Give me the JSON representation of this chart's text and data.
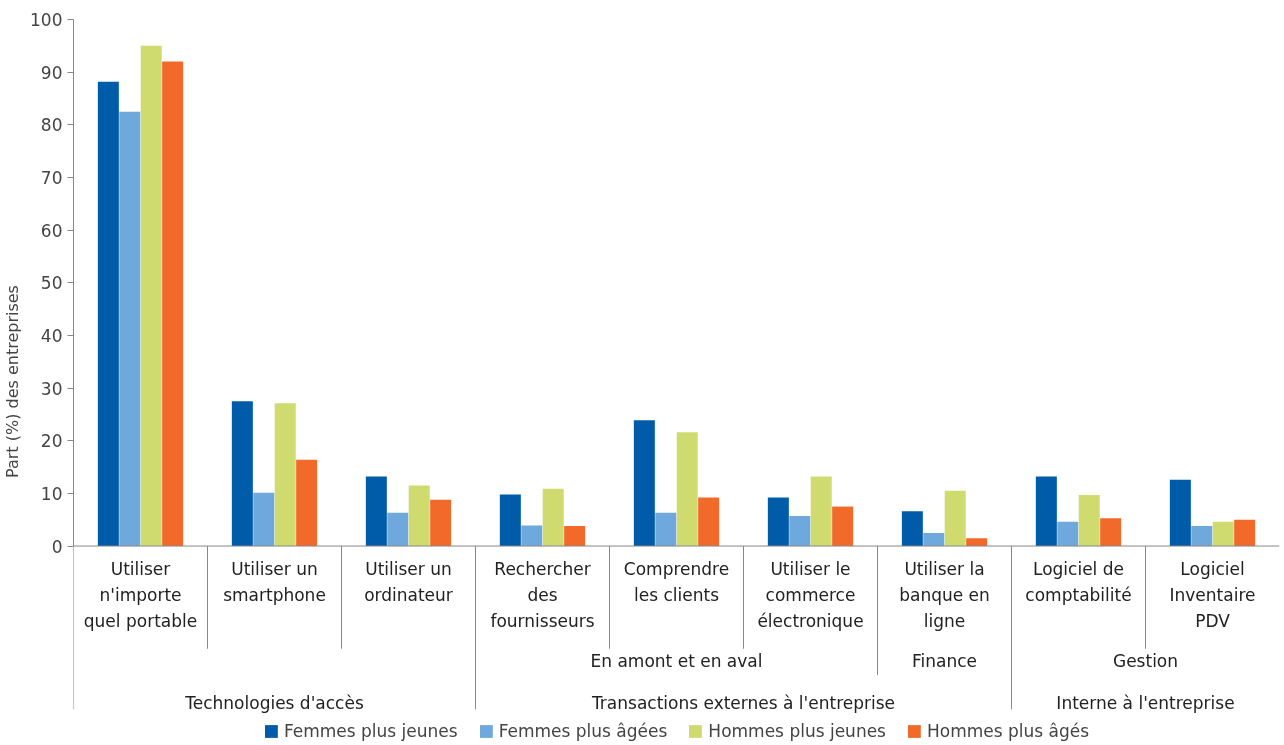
{
  "chart_data": {
    "type": "bar",
    "ylabel": "Part (%) des entreprises",
    "categories": [
      "Utiliser\nn'importe\nquel portable",
      "Utiliser un\nsmartphone",
      "Utiliser un\nordinateur",
      "Rechercher\ndes\nfournisseurs",
      "Comprendre\nles clients",
      "Utiliser le\ncommerce\nélectronique",
      "Utiliser la\nbanque en\nligne",
      "Logiciel de\ncomptabilité",
      "Logiciel\nInventaire\nPDV"
    ],
    "series": [
      {
        "name": "Femmes plus jeunes",
        "color": "#005ca9",
        "values": [
          88.2,
          27.5,
          13.2,
          9.8,
          23.9,
          9.2,
          6.6,
          13.2,
          12.6
        ]
      },
      {
        "name": "Femmes plus âgées",
        "color": "#6fa8dc",
        "values": [
          82.5,
          10.1,
          6.3,
          3.9,
          6.3,
          5.7,
          2.5,
          4.6,
          3.8
        ]
      },
      {
        "name": "Hommes plus jeunes",
        "color": "#cfdb6e",
        "values": [
          95,
          27.1,
          11.5,
          10.9,
          21.6,
          13.2,
          10.5,
          9.7,
          4.6
        ]
      },
      {
        "name": "Hommes plus âgés",
        "color": "#f26a2a",
        "values": [
          92,
          16.4,
          8.8,
          3.8,
          9.2,
          7.5,
          1.5,
          5.3,
          5.0
        ]
      }
    ],
    "ylim": [
      0,
      100
    ],
    "yticks": [
      0,
      10,
      20,
      30,
      40,
      50,
      60,
      70,
      80,
      90,
      100
    ],
    "annotations": [
      "En amont et en aval",
      "Finance",
      "Gestion",
      "Technologies d'accès",
      "Transactions externes à l'entreprise",
      "Interne à l'entreprise"
    ],
    "legend": "bottom"
  }
}
